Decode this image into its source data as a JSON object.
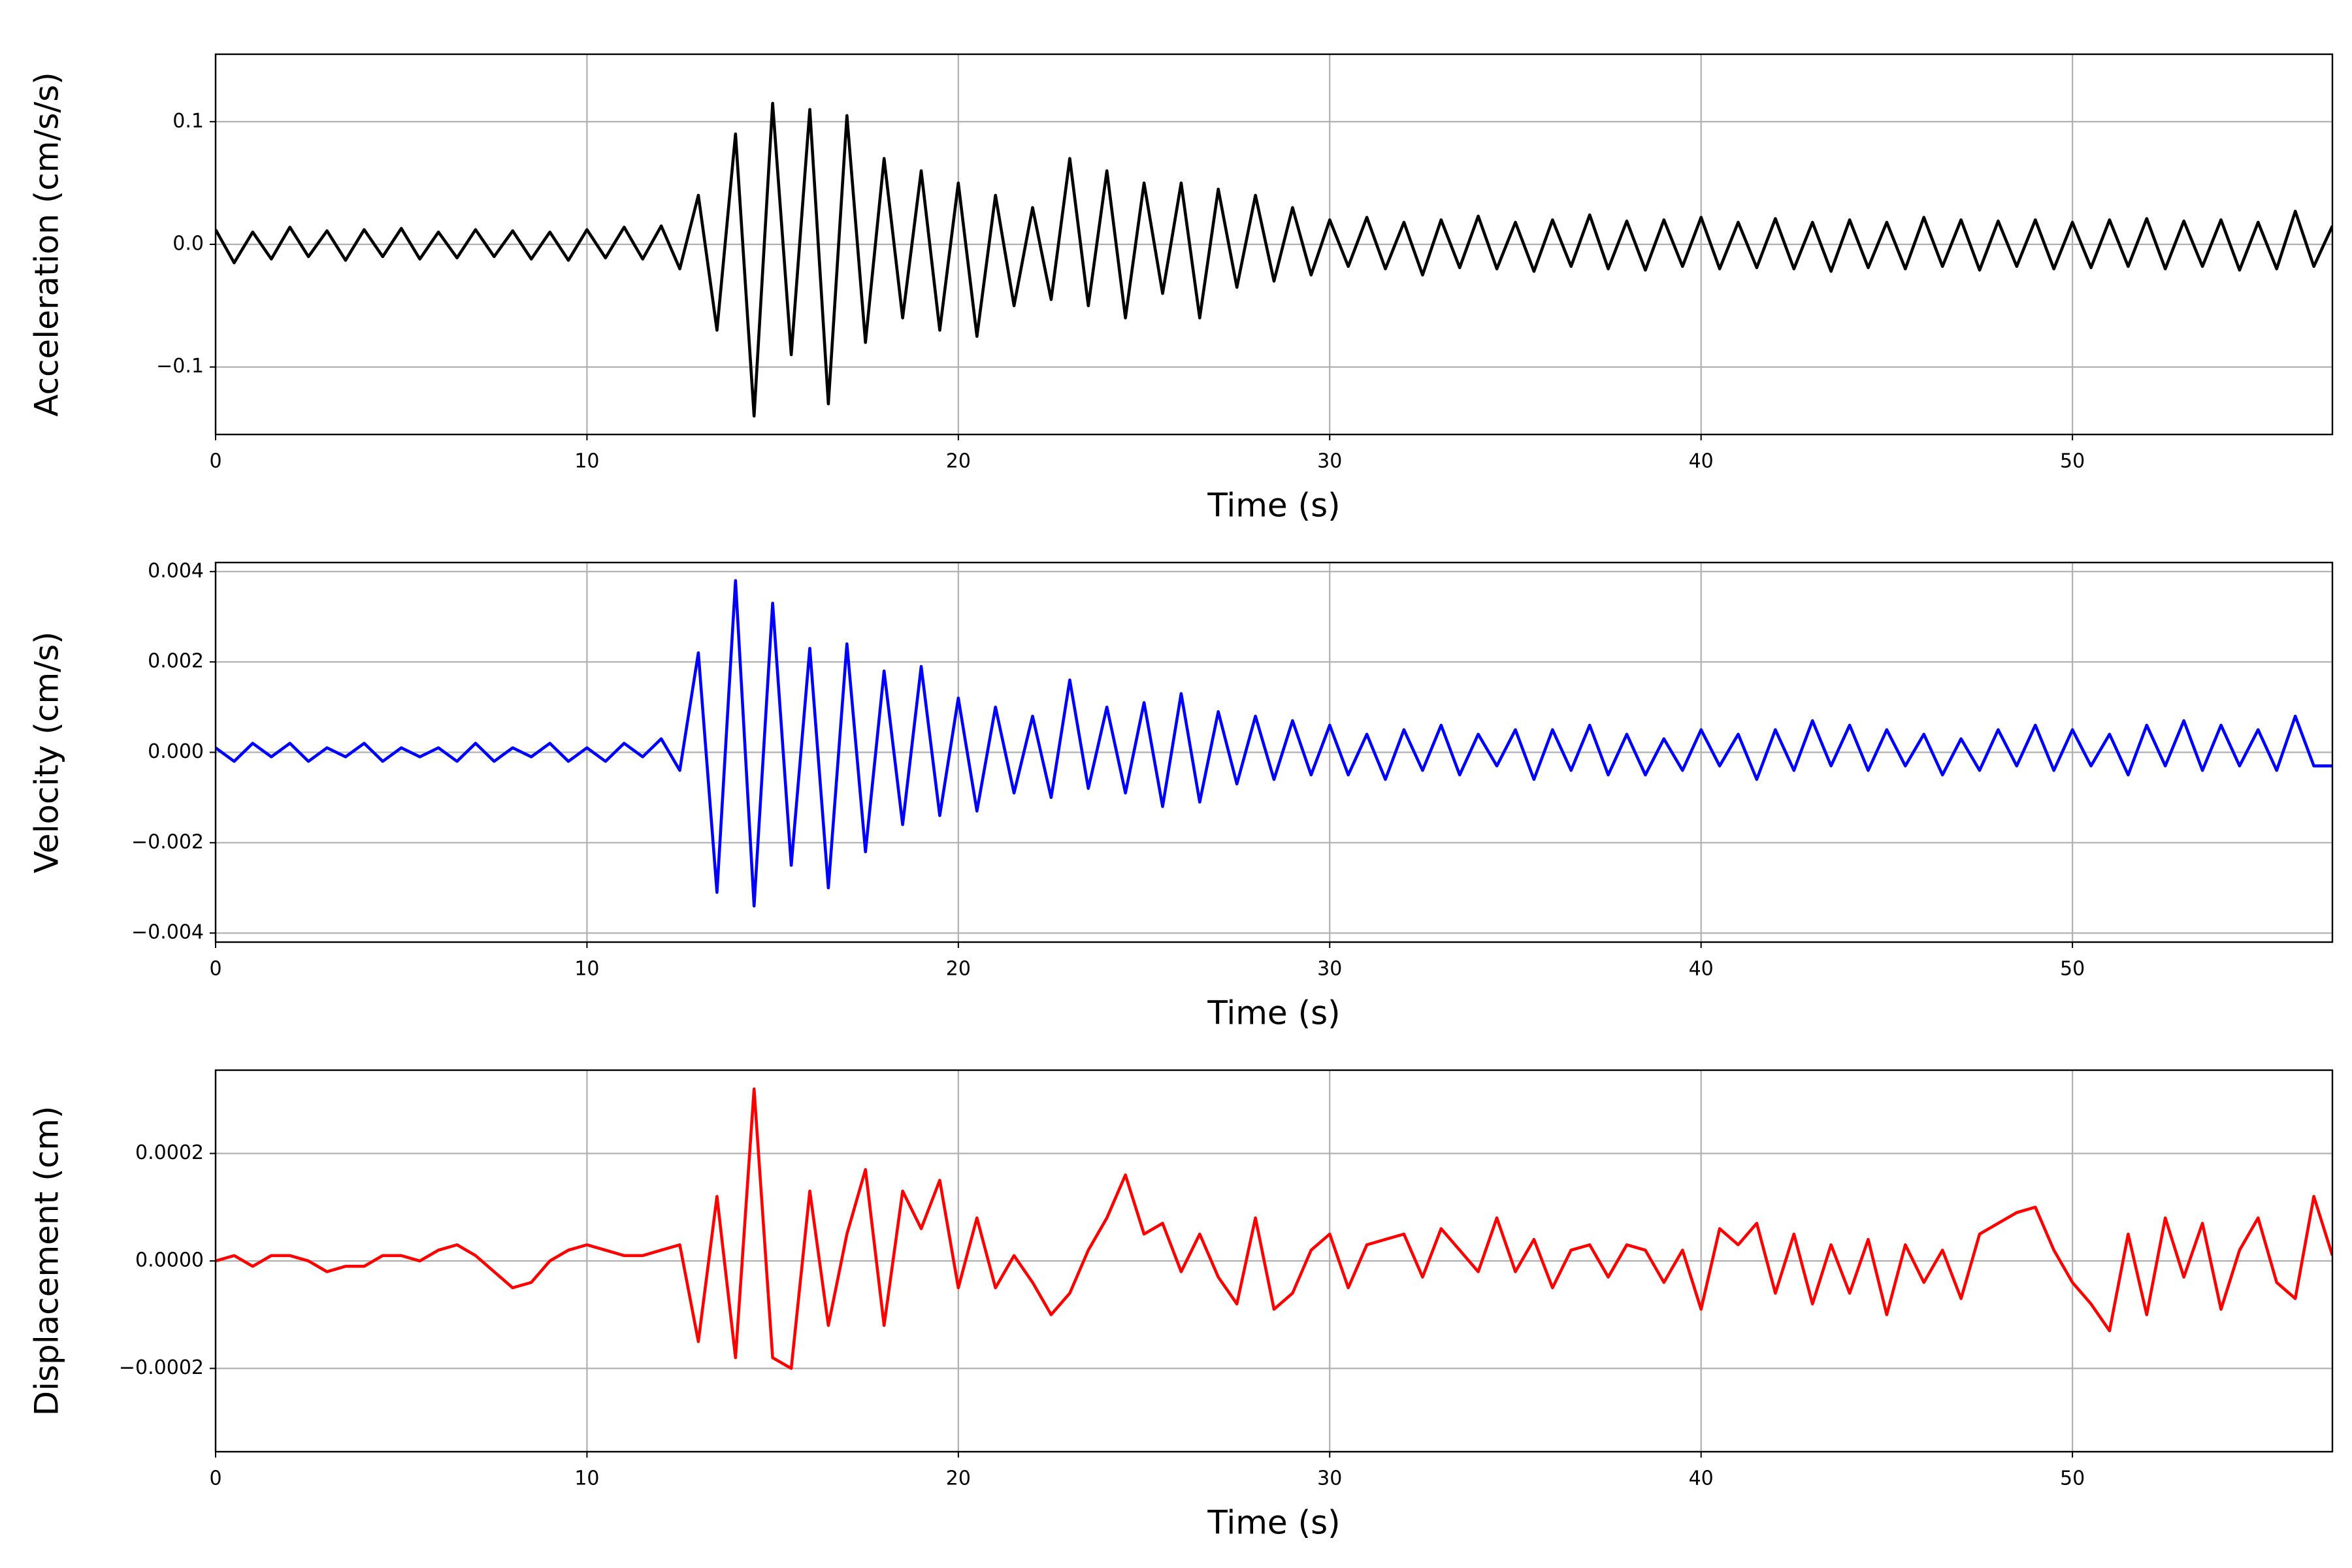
{
  "chart_data": [
    {
      "type": "line",
      "xlabel": "Time (s)",
      "ylabel": "Acceleration (cm/s/s)",
      "color": "#000000",
      "grid": true,
      "xlim": [
        0,
        57
      ],
      "xticks": [
        0,
        10,
        20,
        30,
        40,
        50
      ],
      "ylim": [
        -0.155,
        0.155
      ],
      "yticks": [
        {
          "value": 0.1,
          "label": "0.1"
        },
        {
          "value": 0,
          "label": "0.0"
        },
        {
          "value": -0.1,
          "label": "−0.1"
        }
      ],
      "x": [
        0,
        0.5,
        1,
        1.5,
        2,
        2.5,
        3,
        3.5,
        4,
        4.5,
        5,
        5.5,
        6,
        6.5,
        7,
        7.5,
        8,
        8.5,
        9,
        9.5,
        10,
        10.5,
        11,
        11.5,
        12,
        12.5,
        13,
        13.5,
        14,
        14.5,
        15,
        15.5,
        16,
        16.5,
        17,
        17.5,
        18,
        18.5,
        19,
        19.5,
        20,
        20.5,
        21,
        21.5,
        22,
        22.5,
        23,
        23.5,
        24,
        24.5,
        25,
        25.5,
        26,
        26.5,
        27,
        27.5,
        28,
        28.5,
        29,
        29.5,
        30,
        30.5,
        31,
        31.5,
        32,
        32.5,
        33,
        33.5,
        34,
        34.5,
        35,
        35.5,
        36,
        36.5,
        37,
        37.5,
        38,
        38.5,
        39,
        39.5,
        40,
        40.5,
        41,
        41.5,
        42,
        42.5,
        43,
        43.5,
        44,
        44.5,
        45,
        45.5,
        46,
        46.5,
        47,
        47.5,
        48,
        48.5,
        49,
        49.5,
        50,
        50.5,
        51,
        51.5,
        52,
        52.5,
        53,
        53.5,
        54,
        54.5,
        55,
        55.5,
        56,
        56.5,
        57
      ],
      "values": [
        0.012,
        -0.015,
        0.01,
        -0.012,
        0.014,
        -0.01,
        0.011,
        -0.013,
        0.012,
        -0.01,
        0.013,
        -0.012,
        0.01,
        -0.011,
        0.012,
        -0.01,
        0.011,
        -0.012,
        0.01,
        -0.013,
        0.012,
        -0.011,
        0.014,
        -0.012,
        0.015,
        -0.02,
        0.04,
        -0.07,
        0.09,
        -0.14,
        0.115,
        -0.09,
        0.11,
        -0.13,
        0.105,
        -0.08,
        0.07,
        -0.06,
        0.06,
        -0.07,
        0.05,
        -0.075,
        0.04,
        -0.05,
        0.03,
        -0.045,
        0.07,
        -0.05,
        0.06,
        -0.06,
        0.05,
        -0.04,
        0.05,
        -0.06,
        0.045,
        -0.035,
        0.04,
        -0.03,
        0.03,
        -0.025,
        0.02,
        -0.018,
        0.022,
        -0.02,
        0.018,
        -0.025,
        0.02,
        -0.019,
        0.023,
        -0.02,
        0.018,
        -0.022,
        0.02,
        -0.018,
        0.024,
        -0.02,
        0.019,
        -0.021,
        0.02,
        -0.018,
        0.022,
        -0.02,
        0.018,
        -0.019,
        0.021,
        -0.02,
        0.018,
        -0.022,
        0.02,
        -0.019,
        0.018,
        -0.02,
        0.022,
        -0.018,
        0.02,
        -0.021,
        0.019,
        -0.018,
        0.02,
        -0.02,
        0.018,
        -0.019,
        0.02,
        -0.018,
        0.021,
        -0.02,
        0.019,
        -0.018,
        0.02,
        -0.021,
        0.018,
        -0.02,
        0.027,
        -0.018,
        0.015
      ]
    },
    {
      "type": "line",
      "xlabel": "Time (s)",
      "ylabel": "Velocity (cm/s)",
      "color": "#0000ff",
      "grid": true,
      "xlim": [
        0,
        57
      ],
      "xticks": [
        0,
        10,
        20,
        30,
        40,
        50
      ],
      "ylim": [
        -0.0042,
        0.0042
      ],
      "yticks": [
        {
          "value": 0.004,
          "label": "0.004"
        },
        {
          "value": 0.002,
          "label": "0.002"
        },
        {
          "value": 0,
          "label": "0.000"
        },
        {
          "value": -0.002,
          "label": "−0.002"
        },
        {
          "value": -0.004,
          "label": "−0.004"
        }
      ],
      "x": [
        0,
        0.5,
        1,
        1.5,
        2,
        2.5,
        3,
        3.5,
        4,
        4.5,
        5,
        5.5,
        6,
        6.5,
        7,
        7.5,
        8,
        8.5,
        9,
        9.5,
        10,
        10.5,
        11,
        11.5,
        12,
        12.5,
        13,
        13.5,
        14,
        14.5,
        15,
        15.5,
        16,
        16.5,
        17,
        17.5,
        18,
        18.5,
        19,
        19.5,
        20,
        20.5,
        21,
        21.5,
        22,
        22.5,
        23,
        23.5,
        24,
        24.5,
        25,
        25.5,
        26,
        26.5,
        27,
        27.5,
        28,
        28.5,
        29,
        29.5,
        30,
        30.5,
        31,
        31.5,
        32,
        32.5,
        33,
        33.5,
        34,
        34.5,
        35,
        35.5,
        36,
        36.5,
        37,
        37.5,
        38,
        38.5,
        39,
        39.5,
        40,
        40.5,
        41,
        41.5,
        42,
        42.5,
        43,
        43.5,
        44,
        44.5,
        45,
        45.5,
        46,
        46.5,
        47,
        47.5,
        48,
        48.5,
        49,
        49.5,
        50,
        50.5,
        51,
        51.5,
        52,
        52.5,
        53,
        53.5,
        54,
        54.5,
        55,
        55.5,
        56,
        56.5,
        57
      ],
      "values": [
        0.0001,
        -0.0002,
        0.0002,
        -0.0001,
        0.0002,
        -0.0002,
        0.0001,
        -0.0001,
        0.0002,
        -0.0002,
        0.0001,
        -0.0001,
        0.0001,
        -0.0002,
        0.0002,
        -0.0002,
        0.0001,
        -0.0001,
        0.0002,
        -0.0002,
        0.0001,
        -0.0002,
        0.0002,
        -0.0001,
        0.0003,
        -0.0004,
        0.0022,
        -0.0031,
        0.0038,
        -0.0034,
        0.0033,
        -0.0025,
        0.0023,
        -0.003,
        0.0024,
        -0.0022,
        0.0018,
        -0.0016,
        0.0019,
        -0.0014,
        0.0012,
        -0.0013,
        0.001,
        -0.0009,
        0.0008,
        -0.001,
        0.0016,
        -0.0008,
        0.001,
        -0.0009,
        0.0011,
        -0.0012,
        0.0013,
        -0.0011,
        0.0009,
        -0.0007,
        0.0008,
        -0.0006,
        0.0007,
        -0.0005,
        0.0006,
        -0.0005,
        0.0004,
        -0.0006,
        0.0005,
        -0.0004,
        0.0006,
        -0.0005,
        0.0004,
        -0.0003,
        0.0005,
        -0.0006,
        0.0005,
        -0.0004,
        0.0006,
        -0.0005,
        0.0004,
        -0.0005,
        0.0003,
        -0.0004,
        0.0005,
        -0.0003,
        0.0004,
        -0.0006,
        0.0005,
        -0.0004,
        0.0007,
        -0.0003,
        0.0006,
        -0.0004,
        0.0005,
        -0.0003,
        0.0004,
        -0.0005,
        0.0003,
        -0.0004,
        0.0005,
        -0.0003,
        0.0006,
        -0.0004,
        0.0005,
        -0.0003,
        0.0004,
        -0.0005,
        0.0006,
        -0.0003,
        0.0007,
        -0.0004,
        0.0006,
        -0.0003,
        0.0005,
        -0.0004,
        0.0008,
        -0.0003,
        -0.0003
      ]
    },
    {
      "type": "line",
      "xlabel": "Time (s)",
      "ylabel": "Displacement (cm)",
      "color": "#ff0000",
      "grid": true,
      "xlim": [
        0,
        57
      ],
      "xticks": [
        0,
        10,
        20,
        30,
        40,
        50
      ],
      "ylim": [
        -0.000355,
        0.000355
      ],
      "yticks": [
        {
          "value": 0.0002,
          "label": "0.0002"
        },
        {
          "value": 0,
          "label": "0.0000"
        },
        {
          "value": -0.0002,
          "label": "−0.0002"
        }
      ],
      "x": [
        0,
        0.5,
        1,
        1.5,
        2,
        2.5,
        3,
        3.5,
        4,
        4.5,
        5,
        5.5,
        6,
        6.5,
        7,
        7.5,
        8,
        8.5,
        9,
        9.5,
        10,
        10.5,
        11,
        11.5,
        12,
        12.5,
        13,
        13.5,
        14,
        14.5,
        15,
        15.5,
        16,
        16.5,
        17,
        17.5,
        18,
        18.5,
        19,
        19.5,
        20,
        20.5,
        21,
        21.5,
        22,
        22.5,
        23,
        23.5,
        24,
        24.5,
        25,
        25.5,
        26,
        26.5,
        27,
        27.5,
        28,
        28.5,
        29,
        29.5,
        30,
        30.5,
        31,
        31.5,
        32,
        32.5,
        33,
        33.5,
        34,
        34.5,
        35,
        35.5,
        36,
        36.5,
        37,
        37.5,
        38,
        38.5,
        39,
        39.5,
        40,
        40.5,
        41,
        41.5,
        42,
        42.5,
        43,
        43.5,
        44,
        44.5,
        45,
        45.5,
        46,
        46.5,
        47,
        47.5,
        48,
        48.5,
        49,
        49.5,
        50,
        50.5,
        51,
        51.5,
        52,
        52.5,
        53,
        53.5,
        54,
        54.5,
        55,
        55.5,
        56,
        56.5,
        57
      ],
      "values": [
        0,
        1e-05,
        -1e-05,
        1e-05,
        1e-05,
        0,
        -2e-05,
        -1e-05,
        -1e-05,
        1e-05,
        1e-05,
        0,
        2e-05,
        3e-05,
        1e-05,
        -2e-05,
        -5e-05,
        -4e-05,
        0,
        2e-05,
        3e-05,
        2e-05,
        1e-05,
        1e-05,
        2e-05,
        3e-05,
        -0.00015,
        0.00012,
        -0.00018,
        0.00032,
        -0.00018,
        -0.0002,
        0.00013,
        -0.00012,
        5e-05,
        0.00017,
        -0.00012,
        0.00013,
        6e-05,
        0.00015,
        -5e-05,
        8e-05,
        -5e-05,
        1e-05,
        -4e-05,
        -0.0001,
        -6e-05,
        2e-05,
        8e-05,
        0.00016,
        5e-05,
        7e-05,
        -2e-05,
        5e-05,
        -3e-05,
        -8e-05,
        8e-05,
        -9e-05,
        -6e-05,
        2e-05,
        5e-05,
        -5e-05,
        3e-05,
        4e-05,
        5e-05,
        -3e-05,
        6e-05,
        2e-05,
        -2e-05,
        8e-05,
        -2e-05,
        4e-05,
        -5e-05,
        2e-05,
        3e-05,
        -3e-05,
        3e-05,
        2e-05,
        -4e-05,
        2e-05,
        -9e-05,
        6e-05,
        3e-05,
        7e-05,
        -6e-05,
        5e-05,
        -8e-05,
        3e-05,
        -6e-05,
        4e-05,
        -0.0001,
        3e-05,
        -4e-05,
        2e-05,
        -7e-05,
        5e-05,
        7e-05,
        9e-05,
        0.0001,
        2e-05,
        -4e-05,
        -8e-05,
        -0.00013,
        5e-05,
        -0.0001,
        8e-05,
        -3e-05,
        7e-05,
        -9e-05,
        2e-05,
        8e-05,
        -4e-05,
        -7e-05,
        0.00012,
        1e-05
      ]
    }
  ]
}
